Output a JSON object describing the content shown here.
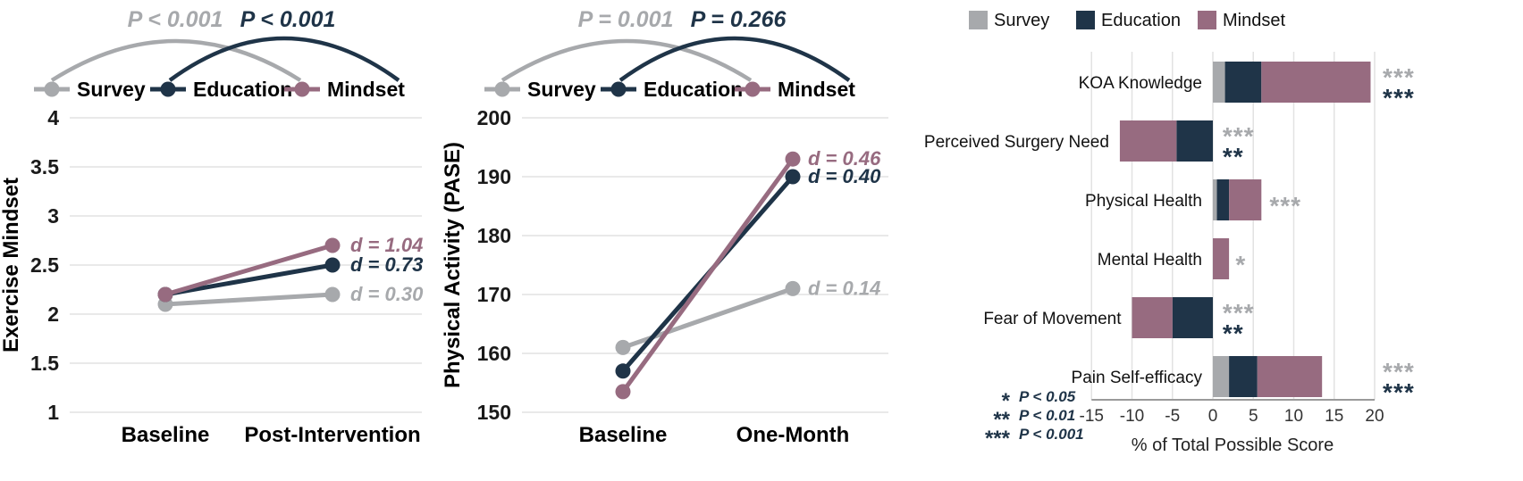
{
  "figure": {
    "background": "#ffffff"
  },
  "colors": {
    "survey": "#a7a9ac",
    "education": "#1f3448",
    "mindset": "#976b80",
    "grid": "#e2e2e2",
    "axis": "#9a9a9a",
    "tick": "#1a1a1a",
    "text": "#111111"
  },
  "chart_data": [
    {
      "type": "line",
      "name": "exercise-mindset",
      "ylabel": "Exercise Mindset",
      "categories": [
        "Baseline",
        "Post-Intervention"
      ],
      "ylim": [
        1,
        4
      ],
      "yticks": [
        1,
        1.5,
        2,
        2.5,
        3,
        3.5,
        4
      ],
      "grid": true,
      "legend_position": "top",
      "series": [
        {
          "name": "Survey",
          "color_key": "survey",
          "values": [
            2.1,
            2.2
          ],
          "effect_label": "d = 0.30"
        },
        {
          "name": "Education",
          "color_key": "education",
          "values": [
            2.2,
            2.5
          ],
          "effect_label": "d = 0.73"
        },
        {
          "name": "Mindset",
          "color_key": "mindset",
          "values": [
            2.2,
            2.7
          ],
          "effect_label": "d = 1.04"
        }
      ],
      "comparisons": [
        {
          "label": "P < 0.001",
          "color_key": "survey"
        },
        {
          "label": "P < 0.001",
          "color_key": "education"
        }
      ]
    },
    {
      "type": "line",
      "name": "physical-activity",
      "ylabel": "Physical Activity (PASE)",
      "categories": [
        "Baseline",
        "One-Month"
      ],
      "ylim": [
        150,
        200
      ],
      "yticks": [
        150,
        160,
        170,
        180,
        190,
        200
      ],
      "grid": true,
      "legend_position": "top",
      "series": [
        {
          "name": "Survey",
          "color_key": "survey",
          "values": [
            161,
            171
          ],
          "effect_label": "d = 0.14"
        },
        {
          "name": "Education",
          "color_key": "education",
          "values": [
            157,
            190
          ],
          "effect_label": "d = 0.40"
        },
        {
          "name": "Mindset",
          "color_key": "mindset",
          "values": [
            153.5,
            193
          ],
          "effect_label": "d = 0.46"
        }
      ],
      "comparisons": [
        {
          "label": "P = 0.001",
          "color_key": "survey"
        },
        {
          "label": "P = 0.266",
          "color_key": "education"
        }
      ]
    },
    {
      "type": "bar",
      "name": "outcomes",
      "orientation": "horizontal",
      "stacked": true,
      "xlabel": "% of Total Possible Score",
      "xlim": [
        -15,
        20
      ],
      "xticks": [
        -15,
        -10,
        -5,
        0,
        5,
        10,
        15,
        20
      ],
      "grid": true,
      "legend_position": "top",
      "categories": [
        "KOA Knowledge",
        "Perceived Surgery Need",
        "Physical Health",
        "Mental Health",
        "Fear of Movement",
        "Pain Self-efficacy"
      ],
      "series": [
        {
          "name": "Survey",
          "color_key": "survey",
          "values": [
            1.5,
            0,
            0.5,
            0,
            0,
            2
          ]
        },
        {
          "name": "Education",
          "color_key": "education",
          "values": [
            4.5,
            -4.5,
            1.5,
            0,
            -5,
            3.5
          ]
        },
        {
          "name": "Mindset",
          "color_key": "mindset",
          "values": [
            13.5,
            -7,
            4,
            2,
            -5,
            8
          ]
        }
      ],
      "significance": [
        {
          "category": "KOA Knowledge",
          "x": 21,
          "marks": [
            {
              "text": "***",
              "color_key": "survey"
            },
            {
              "text": "***",
              "color_key": "education"
            }
          ]
        },
        {
          "category": "Perceived Surgery Need",
          "x": 1.2,
          "marks": [
            {
              "text": "***",
              "color_key": "survey"
            },
            {
              "text": "**",
              "color_key": "education"
            }
          ]
        },
        {
          "category": "Physical Health",
          "x": 7,
          "marks": [
            {
              "text": "***",
              "color_key": "survey"
            }
          ]
        },
        {
          "category": "Mental Health",
          "x": 2.8,
          "marks": [
            {
              "text": "*",
              "color_key": "survey"
            }
          ]
        },
        {
          "category": "Fear of Movement",
          "x": 1.2,
          "marks": [
            {
              "text": "***",
              "color_key": "survey"
            },
            {
              "text": "**",
              "color_key": "education"
            }
          ]
        },
        {
          "category": "Pain Self-efficacy",
          "x": 21,
          "marks": [
            {
              "text": "***",
              "color_key": "survey"
            },
            {
              "text": "***",
              "color_key": "education"
            }
          ]
        }
      ],
      "sig_legend": [
        {
          "stars": "*",
          "label": "P < 0.05"
        },
        {
          "stars": "**",
          "label": "P < 0.01"
        },
        {
          "stars": "***",
          "label": "P < 0.001"
        }
      ]
    }
  ]
}
